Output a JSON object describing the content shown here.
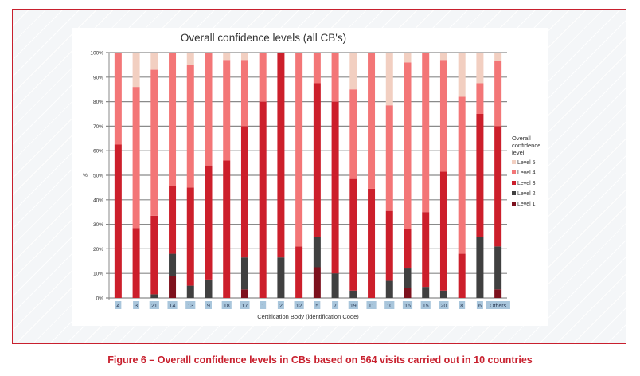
{
  "caption": "Figure 6 –  Overall confidence levels in CBs based on 564 visits carried out in 10 countries",
  "chart_data": {
    "type": "bar",
    "stacked": true,
    "title": "Overall confidence levels (all CB's)",
    "xlabel": "Certification Body (identification Code)",
    "ylabel": "%",
    "ylim": [
      0,
      100
    ],
    "yticks": [
      "0%",
      "10%",
      "20%",
      "30%",
      "40%",
      "50%",
      "60%",
      "70%",
      "80%",
      "90%",
      "100%"
    ],
    "grid": true,
    "legend_title": "Overall confidence level",
    "legend_position": "right",
    "categories": [
      "4",
      "3",
      "21",
      "14",
      "13",
      "9",
      "18",
      "17",
      "1",
      "2",
      "12",
      "5",
      "7",
      "19",
      "11",
      "10",
      "16",
      "15",
      "20",
      "8",
      "6",
      "Others"
    ],
    "series": [
      {
        "name": "Level 1",
        "color": "#7d111d",
        "values": [
          0,
          0,
          0,
          9,
          0,
          0,
          0,
          3.5,
          0,
          0,
          0,
          12.5,
          0,
          0,
          0,
          0,
          4,
          0,
          0,
          0,
          0,
          3.5
        ]
      },
      {
        "name": "Level 2",
        "color": "#404040",
        "values": [
          0,
          0,
          1.5,
          9,
          5,
          7.5,
          0,
          13,
          0,
          16.5,
          0,
          12.5,
          10,
          3,
          0,
          7,
          8,
          4.5,
          3,
          0,
          25,
          17.5
        ]
      },
      {
        "name": "Level 3",
        "color": "#cc1f2b",
        "values": [
          62.5,
          28.5,
          32,
          27.5,
          40,
          46.5,
          56,
          53.5,
          80,
          83.5,
          21,
          62.5,
          70,
          45.5,
          44.5,
          28.5,
          16,
          30.5,
          48.5,
          18,
          50,
          49
        ]
      },
      {
        "name": "Level 4",
        "color": "#f37677",
        "values": [
          37.5,
          57.5,
          59.5,
          54.5,
          50,
          46,
          41,
          27,
          20,
          0,
          79,
          12.5,
          20,
          36.5,
          55.5,
          43,
          68,
          65,
          45.5,
          64,
          12.5,
          26.5
        ]
      },
      {
        "name": "Level 5",
        "color": "#f2cfc1",
        "values": [
          0,
          14,
          7,
          0,
          5,
          0,
          3,
          3,
          0,
          0,
          0,
          0,
          0,
          15,
          0,
          21.5,
          4,
          0,
          3,
          18,
          12.5,
          3.5
        ]
      }
    ],
    "legend_order": [
      "Level 5",
      "Level 4",
      "Level 3",
      "Level 2",
      "Level 1"
    ]
  }
}
